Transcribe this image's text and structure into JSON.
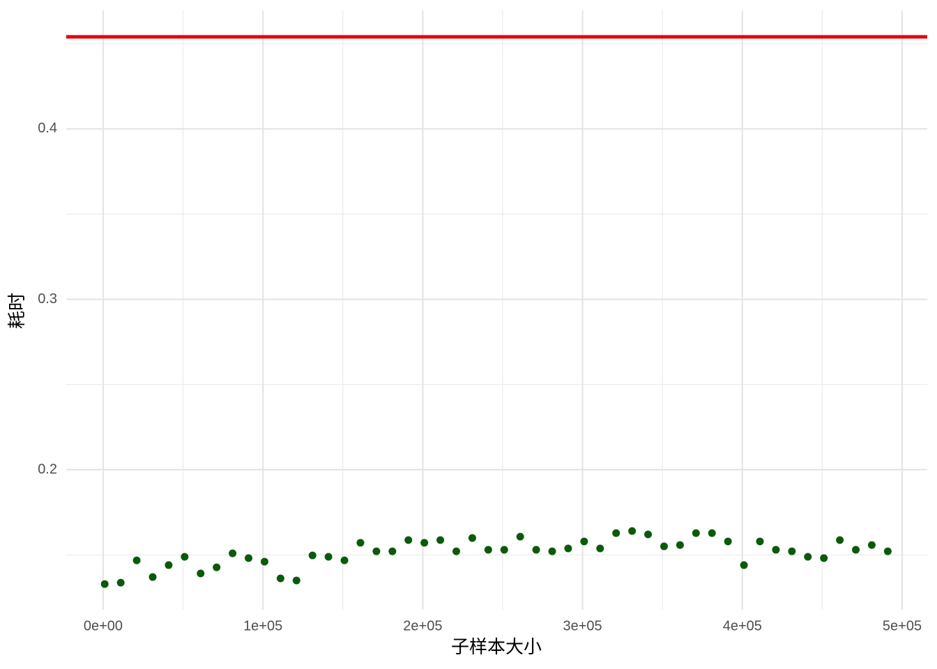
{
  "chart_data": {
    "type": "scatter",
    "x_label": "子样本大小",
    "y_label": "耗时",
    "x": [
      1000,
      11000,
      21000,
      31000,
      41000,
      51000,
      61000,
      71000,
      81000,
      91000,
      101000,
      111000,
      121000,
      131000,
      141000,
      151000,
      161000,
      171000,
      181000,
      191000,
      201000,
      211000,
      221000,
      231000,
      241000,
      251000,
      261000,
      271000,
      281000,
      291000,
      301000,
      311000,
      321000,
      331000,
      341000,
      351000,
      361000,
      371000,
      381000,
      391000,
      401000,
      411000,
      421000,
      431000,
      441000,
      451000,
      461000,
      471000,
      481000,
      491000
    ],
    "values": [
      0.1329,
      0.1337,
      0.1468,
      0.137,
      0.144,
      0.1489,
      0.1391,
      0.1427,
      0.1509,
      0.1481,
      0.146,
      0.1362,
      0.135,
      0.1497,
      0.1489,
      0.1468,
      0.1571,
      0.1521,
      0.1521,
      0.1587,
      0.1571,
      0.1587,
      0.1521,
      0.1599,
      0.153,
      0.153,
      0.1607,
      0.153,
      0.1521,
      0.1538,
      0.1579,
      0.1538,
      0.1628,
      0.164,
      0.162,
      0.155,
      0.1558,
      0.1628,
      0.1628,
      0.1579,
      0.144,
      0.1579,
      0.153,
      0.1521,
      0.1489,
      0.1481,
      0.1587,
      0.153,
      0.1558,
      0.1521
    ],
    "color": "#0b5a0b",
    "hline": {
      "value": 0.454,
      "color": "#e8000b"
    },
    "xlim": [
      -23100,
      515700
    ],
    "ylim": [
      0.1178,
      0.4695
    ],
    "xticks": [
      {
        "value": 0,
        "label": "0e+00"
      },
      {
        "value": 100000,
        "label": "1e+05"
      },
      {
        "value": 200000,
        "label": "2e+05"
      },
      {
        "value": 300000,
        "label": "3e+05"
      },
      {
        "value": 400000,
        "label": "4e+05"
      },
      {
        "value": 500000,
        "label": "5e+05"
      }
    ],
    "yticks": [
      0.2,
      0.3,
      0.4
    ],
    "grid": true
  }
}
